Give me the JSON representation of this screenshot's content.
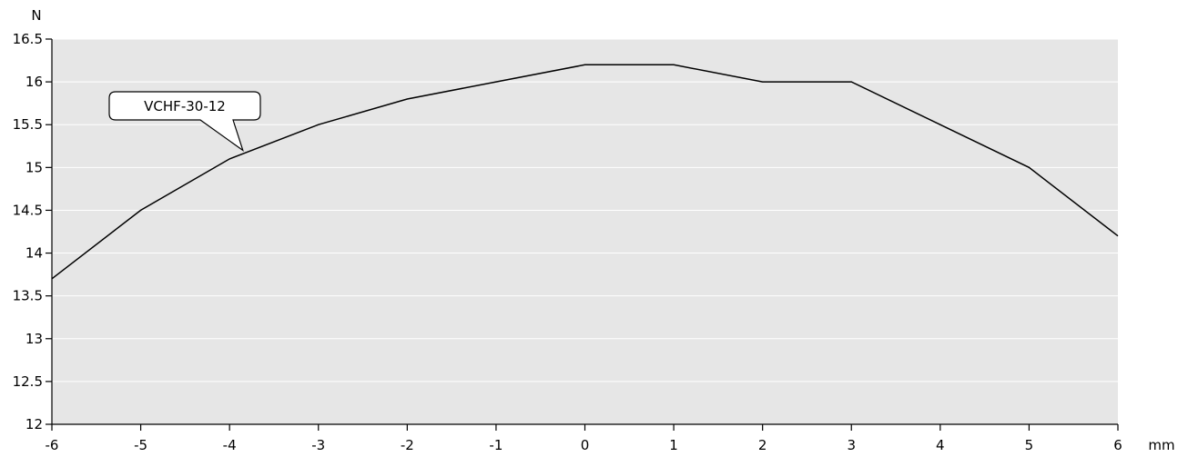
{
  "chart_data": {
    "type": "line",
    "title": "",
    "xlabel": "mm",
    "ylabel": "N",
    "xlim": [
      -6,
      6
    ],
    "ylim": [
      12,
      16.5
    ],
    "x_ticks": [
      -6,
      -5,
      -4,
      -3,
      -2,
      -1,
      0,
      1,
      2,
      3,
      4,
      5,
      6
    ],
    "y_ticks": [
      12,
      12.5,
      13,
      13.5,
      14,
      14.5,
      15,
      15.5,
      16,
      16.5
    ],
    "grid": "horizontal",
    "series": [
      {
        "name": "VCHF-30-12",
        "x": [
          -6,
          -5,
          -4,
          -3,
          -2,
          -1,
          0,
          1,
          2,
          3,
          4,
          5,
          6
        ],
        "y": [
          13.7,
          14.5,
          15.1,
          15.5,
          15.8,
          16.0,
          16.2,
          16.2,
          16.0,
          16.0,
          15.5,
          15.0,
          14.2
        ]
      }
    ],
    "annotations": [
      {
        "text": "VCHF-30-12",
        "target_x": -3.85,
        "target_y": 15.2
      }
    ]
  },
  "colors": {
    "plot_background": "#e6e6e6",
    "grid": "#ffffff",
    "line": "#000000",
    "axis": "#000000"
  }
}
